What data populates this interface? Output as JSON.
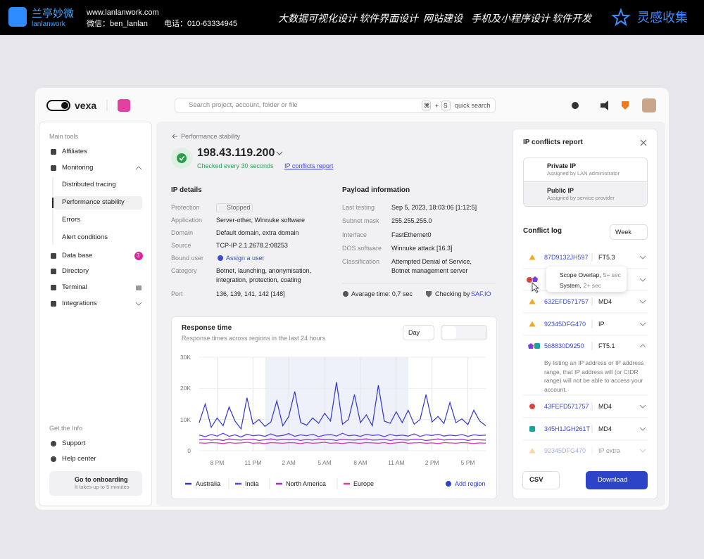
{
  "banner": {
    "brand": "兰亭妙微",
    "brand_en": "lanlanwork",
    "site": "www.lanlanwork.com",
    "wechat": "微信：ben_lanlan",
    "phone": "电话：010-63334945",
    "nav": [
      "大数据可视化设计",
      "软件界面设计",
      "网站建设",
      "手机及小程序设计",
      "软件开发"
    ],
    "collect": "灵感收集"
  },
  "header": {
    "logo": "vexa",
    "search": "Search project, account, folder or file",
    "keys": [
      "⌘",
      "+",
      "S"
    ],
    "hint": "quick search"
  },
  "sidebar": {
    "main_title": "Main tools",
    "items": [
      "Affiliates",
      "Monitoring",
      "Distributed tracing",
      "Performance stability",
      "Errors",
      "Alert conditions",
      "Data base",
      "Directory",
      "Terminal",
      "Integrations"
    ],
    "badge": 3,
    "info_title": "Get the Info",
    "info_items": [
      "Support",
      "Help center"
    ],
    "onboarding": {
      "title": "Go to onboarding",
      "subtitle": "It takes up to 5 minutes"
    }
  },
  "main": {
    "breadcrumb": "Performance stability",
    "ip": "198.43.119.200",
    "check": "Checked every 30 seconds",
    "report_link": "IP conflicts report",
    "ip_details": {
      "title": "IP details",
      "rows": [
        [
          "Protection",
          "Stopped"
        ],
        [
          "Application",
          "Server-other, Winnuke software"
        ],
        [
          "Domain",
          "Default domain, extra domain"
        ],
        [
          "Source",
          "TCP-IP 2.1.2678.2:08253"
        ],
        [
          "Bound user",
          "Assign a user"
        ],
        [
          "Category",
          "Botnet, launching, anonymisation, integration, protection, coating"
        ],
        [
          "Port",
          "136, 139, 141, 142 [148]"
        ]
      ]
    },
    "payload": {
      "title": "Payload information",
      "rows": [
        [
          "Last testing",
          "Sep 5, 2023, 18:03:06 [1:12:5]"
        ],
        [
          "Subnet mask",
          "255.255.255.0"
        ],
        [
          "Interface",
          "FastEthernet0"
        ],
        [
          "DOS software",
          "Winnuke attack [16.3]"
        ],
        [
          "Classification",
          "Attempted Denial of Service, Botnet management server"
        ]
      ],
      "avg": "Avarage time: 0,7 sec",
      "checking": "Checking by",
      "checker": "SAF.IO"
    }
  },
  "chart_data": {
    "type": "line",
    "title": "Response time",
    "subtitle": "Response times across regions in the last 24 hours",
    "period": "Day",
    "action": "Add region",
    "grid": true,
    "x": [
      18.5,
      19,
      19.5,
      20,
      20.5,
      21,
      21.5,
      22,
      22.5,
      23,
      23.5,
      24,
      24.5,
      25,
      25.5,
      26,
      26.5,
      27,
      27.5,
      28,
      28.5,
      29,
      29.5,
      30,
      30.5,
      31,
      31.5,
      32,
      32.5,
      33,
      33.5,
      34,
      34.5,
      35,
      35.5,
      36,
      36.5,
      37,
      37.5,
      38,
      38.5,
      39,
      39.5,
      40,
      40.5,
      41,
      41.5,
      42,
      42.5
    ],
    "xlim": [
      18.5,
      42.5
    ],
    "xticks": [
      {
        "value": 20,
        "label": "8 PM"
      },
      {
        "value": 23,
        "label": "11 PM"
      },
      {
        "value": 26,
        "label": "2 AM"
      },
      {
        "value": 29,
        "label": "5 AM"
      },
      {
        "value": 32,
        "label": "8 AM"
      },
      {
        "value": 35,
        "label": "11 AM"
      },
      {
        "value": 38,
        "label": "2 PM"
      },
      {
        "value": 41,
        "label": "5 PM"
      }
    ],
    "ylim": [
      0,
      30000
    ],
    "yticks": [
      0,
      {
        "value": 10000,
        "label": "10K"
      },
      {
        "value": 20000,
        "label": "20K"
      },
      {
        "value": 30000,
        "label": "30K"
      }
    ],
    "series": [
      {
        "name": "Australia",
        "color": "#2f36c9",
        "values": [
          9000,
          15000,
          7500,
          10500,
          8000,
          14000,
          9500,
          7000,
          17000,
          8500,
          10000,
          7800,
          9200,
          16000,
          8000,
          11000,
          19000,
          9000,
          8200,
          10500,
          8800,
          12000,
          9500,
          22000,
          8500,
          10000,
          18000,
          9000,
          11500,
          8000,
          21000,
          9500,
          8800,
          12500,
          9000,
          13000,
          8500,
          10000,
          18000,
          9200,
          11000,
          8700,
          15500,
          9000,
          10200,
          8400,
          13000,
          9500,
          8000
        ]
      },
      {
        "name": "India",
        "color": "#5a45dd",
        "values": [
          5000,
          4500,
          5200,
          4700,
          5600,
          4600,
          5100,
          4400,
          5300,
          4800,
          5000,
          4600,
          5400,
          4700,
          4900,
          5500,
          4600,
          5100,
          4800,
          5300,
          4500,
          5000,
          5200,
          4700,
          5600,
          4800,
          5000,
          4600,
          5300,
          4900,
          5100,
          4500,
          5200,
          4800,
          5000,
          4700,
          5400,
          4600,
          5100,
          4900,
          5300,
          4700,
          5000,
          4800,
          5200,
          4600,
          5100,
          4900,
          5000
        ]
      },
      {
        "name": "North America",
        "color": "#9a2fc8",
        "values": [
          3500,
          3700,
          3400,
          3600,
          3300,
          3800,
          3500,
          3400,
          3600,
          3700,
          3300,
          3500,
          3800,
          3400,
          3600,
          3500,
          3700,
          3300,
          3600,
          3400,
          3800,
          3500,
          3600,
          3300,
          3700,
          3500,
          3400,
          3600,
          3800,
          3400,
          3500,
          3700,
          3300,
          3600,
          3500,
          3400,
          3700,
          3600,
          3300,
          3500,
          3800,
          3400,
          3600,
          3500,
          3700,
          3300,
          3600,
          3500,
          3400
        ]
      },
      {
        "name": "Europe",
        "color": "#d83fa6",
        "values": [
          2500,
          2400,
          2600,
          2500,
          2300,
          2600,
          2400,
          2500,
          2700,
          2400,
          2500,
          2300,
          2600,
          2500,
          2400,
          2600,
          2500,
          2300,
          2600,
          2400,
          2500,
          2700,
          2400,
          2500,
          2300,
          2600,
          2500,
          2400,
          2600,
          2500,
          2400,
          2600,
          2300,
          2500,
          2700,
          2400,
          2500,
          2600,
          2400,
          2500,
          2300,
          2600,
          2500,
          2400,
          2600,
          2500,
          2300,
          2500,
          2400
        ]
      }
    ]
  },
  "conflicts": {
    "title": "IP conflicts report",
    "options": [
      {
        "title": "Private IP",
        "subtitle": "Assigned by LAN administrator"
      },
      {
        "title": "Public IP",
        "subtitle": "Assigned by service provider"
      }
    ],
    "log_title": "Conflict log",
    "period": "Week",
    "entries": [
      {
        "id": "87D9132JH597",
        "code": "FT5.3"
      },
      {
        "id": "632EFD571757",
        "code": "MD4"
      },
      {
        "id": "92345DFG470",
        "code": "IP"
      },
      {
        "id": "568830D9250",
        "code": "FT5.1"
      },
      {
        "id": "43FEFD571757",
        "code": "MD4"
      },
      {
        "id": "345H1JGH261T",
        "code": "MD4"
      },
      {
        "id": "92345DFG470",
        "code": "IP extra"
      }
    ],
    "tooltip": [
      {
        "label": "Scope Overlap,",
        "detail": "5+ sec"
      },
      {
        "label": "System,",
        "detail": "2+ sec"
      }
    ],
    "note": "By listing an IP address or IP address range, that IP address will (or CIDR range) will not be able to access your account.",
    "export": "CSV",
    "download": "Download"
  }
}
